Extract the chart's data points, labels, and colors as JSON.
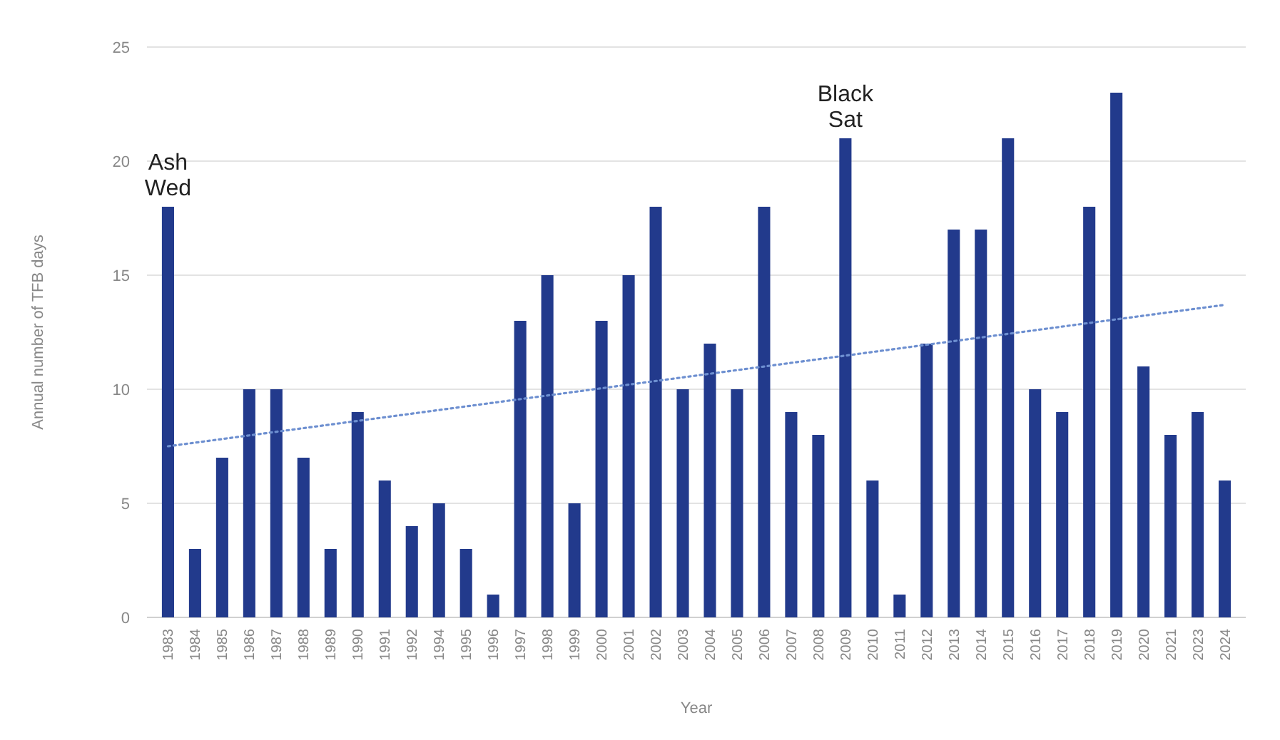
{
  "chart_data": {
    "type": "bar",
    "xlabel": "Year",
    "ylabel": "Annual number of TFB days",
    "categories": [
      "1983",
      "1984",
      "1985",
      "1986",
      "1987",
      "1988",
      "1989",
      "1990",
      "1991",
      "1992",
      "1994",
      "1995",
      "1996",
      "1997",
      "1998",
      "1999",
      "2000",
      "2001",
      "2002",
      "2003",
      "2004",
      "2005",
      "2006",
      "2007",
      "2008",
      "2009",
      "2010",
      "2011",
      "2012",
      "2013",
      "2014",
      "2015",
      "2016",
      "2017",
      "2018",
      "2019",
      "2020",
      "2021",
      "2023",
      "2024"
    ],
    "series": [
      {
        "color": "#223a8c",
        "values": [
          18,
          3,
          7,
          10,
          10,
          7,
          3,
          9,
          6,
          4,
          5,
          3,
          1,
          13,
          15,
          5,
          13,
          15,
          18,
          10,
          12,
          10,
          18,
          9,
          8,
          21,
          6,
          1,
          12,
          17,
          17,
          21,
          10,
          9,
          18,
          23,
          11,
          8,
          9,
          6
        ]
      },
      {
        "type": "line",
        "color": "#6d8fd0",
        "line_style": "dotted",
        "values": [
          7.5,
          null,
          null,
          null,
          null,
          null,
          null,
          null,
          null,
          null,
          null,
          null,
          null,
          null,
          null,
          null,
          null,
          null,
          null,
          null,
          null,
          null,
          null,
          null,
          null,
          null,
          null,
          null,
          null,
          null,
          null,
          null,
          null,
          null,
          null,
          null,
          null,
          null,
          null,
          13.7
        ]
      }
    ],
    "ylim": [
      0,
      25
    ],
    "yticks": [
      0,
      5,
      10,
      15,
      20,
      25
    ],
    "grid": "y",
    "annotations": [
      {
        "text": "Ash Wed",
        "x": "1983",
        "y": 18
      },
      {
        "text": "Black Sat",
        "x": "2009",
        "y": 21
      }
    ]
  }
}
